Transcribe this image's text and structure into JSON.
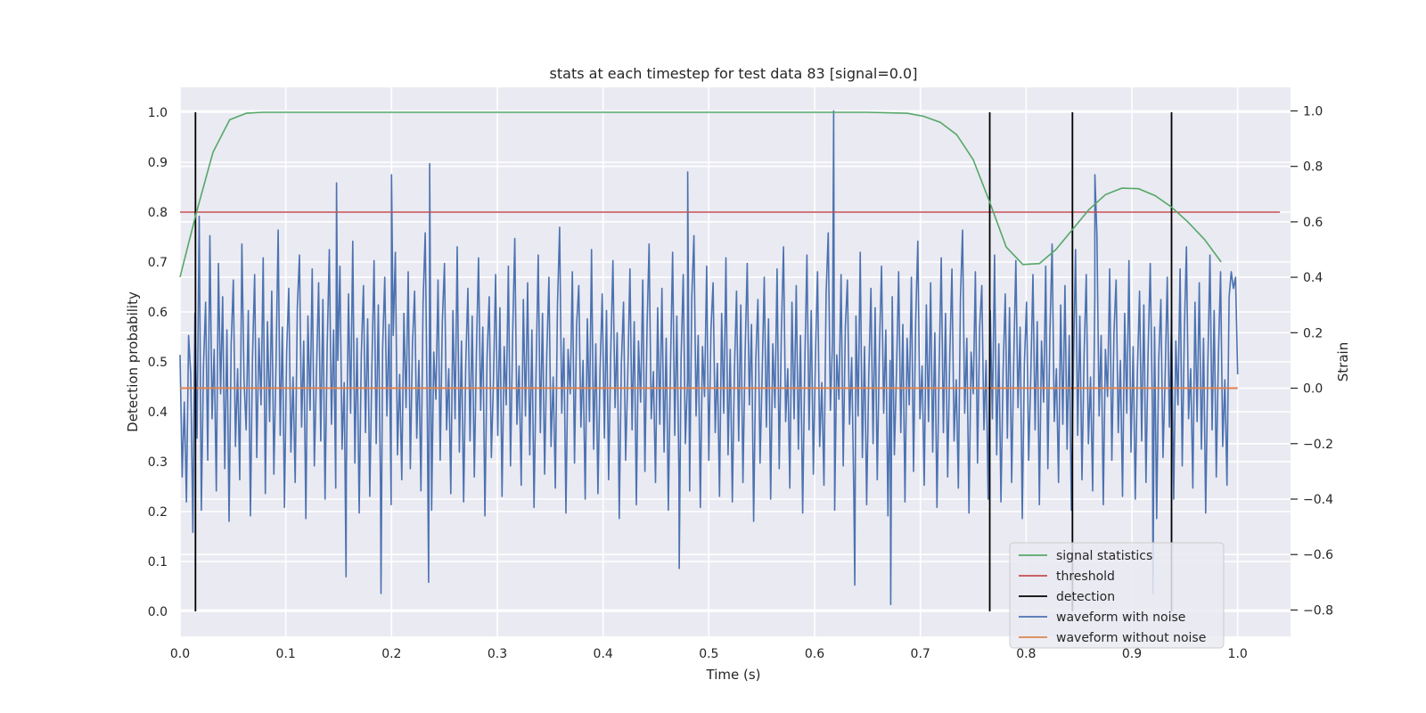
{
  "chart_data": {
    "type": "line",
    "title": "stats at each timestep for test data 83 [signal=0.0]",
    "xlabel": "Time (s)",
    "ylabel_left": "Detection probability",
    "ylabel_right": "Strain",
    "xlim": [
      0.0,
      1.05
    ],
    "ylim_left": [
      -0.05,
      1.05
    ],
    "ylim_right": [
      -0.895,
      1.085
    ],
    "x_ticks": [
      "0.0",
      "0.1",
      "0.2",
      "0.3",
      "0.4",
      "0.5",
      "0.6",
      "0.7",
      "0.8",
      "0.9",
      "1.0"
    ],
    "y_left_ticks": [
      "0.0",
      "0.1",
      "0.2",
      "0.3",
      "0.4",
      "0.5",
      "0.6",
      "0.7",
      "0.8",
      "0.9",
      "1.0"
    ],
    "y_right_ticks": [
      "−0.8",
      "−0.6",
      "−0.4",
      "−0.2",
      "0.0",
      "0.2",
      "0.4",
      "0.6",
      "0.8",
      "1.0"
    ],
    "grid": true,
    "legend_position": "lower-right",
    "series": [
      {
        "name": "signal statistics",
        "axis": "left",
        "color": "#55a868",
        "x": [
          0.0,
          0.0156,
          0.0312,
          0.0469,
          0.0625,
          0.0781,
          0.1,
          0.2,
          0.3,
          0.4,
          0.5,
          0.6,
          0.65,
          0.6875,
          0.7031,
          0.7188,
          0.7344,
          0.75,
          0.7656,
          0.7812,
          0.7969,
          0.8125,
          0.8281,
          0.8438,
          0.8594,
          0.875,
          0.8906,
          0.9062,
          0.9219,
          0.9375,
          0.9531,
          0.9688,
          0.9844
        ],
        "values": [
          0.67,
          0.8,
          0.92,
          0.985,
          0.998,
          1.0,
          1.0,
          1.0,
          1.0,
          1.0,
          1.0,
          1.0,
          1.0,
          0.998,
          0.992,
          0.98,
          0.955,
          0.905,
          0.82,
          0.73,
          0.695,
          0.697,
          0.725,
          0.765,
          0.805,
          0.835,
          0.848,
          0.847,
          0.833,
          0.81,
          0.78,
          0.745,
          0.7
        ]
      },
      {
        "name": "threshold",
        "axis": "left",
        "color": "#c44e52",
        "x": [
          0.0,
          1.04
        ],
        "values": [
          0.8,
          0.8
        ]
      },
      {
        "name": "detection",
        "axis": "left",
        "color": "#000000",
        "x": [
          0.0146,
          0.7656,
          0.8438,
          0.9375
        ],
        "values": [
          1.0,
          1.0,
          1.0,
          1.0
        ]
      },
      {
        "name": "waveform with noise",
        "axis": "right",
        "color": "#4c72b0",
        "x_start": 0.0,
        "x_end": 1.0,
        "values": [
          0.12,
          -0.32,
          -0.05,
          -0.41,
          0.19,
          0.05,
          -0.52,
          0.27,
          -0.18,
          0.62,
          -0.44,
          0.08,
          0.31,
          -0.26,
          0.55,
          -0.11,
          0.14,
          -0.37,
          0.45,
          -0.02,
          0.33,
          -0.29,
          0.21,
          -0.48,
          0.16,
          0.39,
          -0.21,
          0.07,
          -0.33,
          0.52,
          0.03,
          -0.15,
          0.28,
          -0.46,
          0.11,
          0.41,
          -0.25,
          0.18,
          -0.06,
          0.47,
          -0.38,
          0.24,
          -0.12,
          0.35,
          -0.31,
          0.09,
          0.57,
          -0.17,
          0.22,
          -0.43,
          0.13,
          0.36,
          -0.23,
          0.04,
          -0.34,
          0.29,
          0.48,
          -0.14,
          0.17,
          -0.47,
          0.26,
          -0.08,
          0.43,
          -0.28,
          0.06,
          0.38,
          -0.19,
          0.32,
          -0.4,
          0.15,
          0.5,
          -0.13,
          0.21,
          -0.36,
          0.1,
          0.44,
          -0.22,
          0.02,
          -0.3,
          0.34,
          -0.09,
          0.53,
          -0.27,
          0.18,
          -0.45,
          0.12,
          0.37,
          -0.16,
          0.25,
          -0.39,
          0.08,
          0.46,
          -0.2,
          0.3,
          -0.35,
          0.14,
          0.4,
          -0.1,
          0.23,
          -0.42,
          0.19,
          0.49,
          -0.24,
          0.05,
          -0.33,
          0.27,
          -0.07,
          0.42,
          -0.29,
          0.16,
          0.35,
          -0.18,
          0.1,
          -0.37,
          0.31,
          0.56,
          -0.12,
          0.2,
          -0.44,
          0.13,
          -0.04,
          0.39,
          -0.26,
          0.24,
          0.45,
          -0.15,
          0.07,
          -0.38,
          0.28,
          -0.11,
          0.51,
          -0.23,
          0.17,
          -0.41,
          0.09,
          0.36,
          -0.19,
          0.26,
          -0.32,
          0.14,
          0.47,
          -0.08,
          0.22,
          -0.46,
          0.11,
          0.33,
          -0.25,
          0.03,
          0.41,
          -0.17,
          0.29,
          -0.39,
          0.15,
          -0.06,
          0.44,
          -0.28,
          0.19,
          0.54,
          -0.13,
          0.08,
          -0.35,
          0.32,
          -0.1,
          0.38,
          -0.24,
          0.21,
          -0.43,
          0.06,
          0.48,
          -0.16,
          0.27,
          -0.31,
          0.12,
          0.4,
          -0.21,
          0.04,
          -0.36,
          0.3,
          0.58,
          -0.09,
          0.18,
          -0.45,
          0.14,
          -0.02,
          0.42,
          -0.27,
          0.23,
          0.37,
          -0.14,
          0.1,
          -0.4,
          0.25,
          -0.12,
          0.5,
          -0.22,
          0.16,
          -0.38,
          0.07,
          0.34,
          -0.18,
          0.28,
          -0.33,
          0.13,
          0.46,
          -0.07,
          0.2,
          -0.47,
          0.09,
          0.31,
          -0.26,
          0.05,
          0.43,
          -0.15,
          0.24,
          -0.42,
          0.17,
          -0.05,
          0.39,
          -0.3,
          0.22,
          0.52,
          -0.11,
          0.06,
          -0.34,
          0.29,
          -0.13,
          0.36,
          -0.23,
          0.18,
          -0.44,
          0.08,
          0.49,
          -0.17,
          0.26,
          -0.32,
          0.11,
          0.41,
          -0.2,
          0.03,
          -0.37,
          0.33,
          0.55,
          -0.1,
          0.19,
          -0.43,
          0.15,
          -0.03,
          0.44,
          -0.26,
          0.21,
          0.38,
          -0.16,
          0.09,
          -0.39,
          0.27,
          -0.09,
          0.47,
          -0.24,
          0.14,
          -0.41,
          0.06,
          0.35,
          -0.19,
          0.3,
          -0.34,
          0.12,
          0.45,
          -0.06,
          0.23,
          -0.48,
          0.1,
          0.32,
          -0.27,
          0.04,
          0.4,
          -0.14,
          0.25,
          -0.4,
          0.16,
          -0.07,
          0.43,
          -0.29,
          0.2,
          0.51,
          -0.12,
          0.07,
          -0.36,
          0.31,
          -0.11,
          0.37,
          -0.22,
          0.19,
          -0.45,
          0.09,
          0.48,
          -0.15,
          0.28,
          -0.31,
          0.13,
          0.42,
          -0.21,
          0.02,
          -0.35,
          0.34,
          0.56,
          -0.08,
          0.17,
          -0.44,
          0.12,
          -0.04,
          0.41,
          -0.28,
          0.22,
          0.39,
          -0.13,
          0.11,
          -0.38,
          0.26,
          -0.1,
          0.49,
          -0.25,
          0.15,
          -0.42,
          0.05,
          0.36,
          -0.2,
          0.29,
          -0.33,
          0.14,
          0.44,
          -0.09,
          0.21,
          -0.46,
          0.1,
          0.33,
          -0.24,
          0.06,
          0.42,
          -0.16,
          0.23,
          -0.41,
          0.18,
          -0.06,
          0.4,
          -0.3,
          0.24,
          0.53,
          -0.11,
          0.08,
          -0.35,
          0.3,
          -0.12,
          0.38,
          -0.23,
          0.2,
          -0.43,
          0.07,
          0.47,
          -0.16,
          0.27,
          -0.32,
          0.12,
          0.43,
          -0.19,
          0.03,
          -0.36,
          0.32,
          0.57,
          -0.09,
          0.18,
          -0.45,
          0.13,
          -0.02,
          0.42,
          -0.27,
          0.22,
          0.37,
          -0.15,
          0.1,
          -0.4,
          0.28,
          -0.11,
          0.48,
          -0.24,
          0.16,
          -0.41,
          0.06,
          0.34,
          -0.18,
          0.29,
          -0.34,
          0.11,
          0.46,
          -0.07,
          0.22,
          -0.47,
          0.09,
          0.31,
          -0.26,
          0.05,
          0.41,
          -0.15,
          0.24,
          -0.42,
          0.17,
          -0.05,
          0.44,
          -0.29,
          0.21,
          0.52,
          -0.12,
          0.07,
          -0.34,
          0.3,
          -0.13,
          0.37,
          -0.22,
          0.19,
          -0.44,
          0.08,
          0.5,
          -0.17,
          0.26,
          -0.33,
          0.12,
          0.41,
          -0.2,
          0.04,
          -0.37,
          0.33,
          0.55,
          -0.1,
          0.19,
          -0.42,
          0.14,
          -0.03,
          0.43,
          -0.26,
          0.2,
          0.39,
          -0.16,
          0.1,
          -0.39,
          0.27,
          -0.09,
          0.46,
          -0.23,
          0.15,
          -0.4,
          0.06,
          0.35,
          -0.19,
          0.3,
          -0.34,
          0.13,
          0.45,
          -0.07,
          0.22,
          -0.47,
          0.1,
          0.32,
          -0.25,
          0.04,
          0.4,
          -0.14,
          0.25,
          -0.4,
          0.17,
          -0.06,
          0.43,
          -0.28,
          0.21,
          0.51,
          -0.11,
          0.07,
          -0.36,
          0.31,
          -0.12,
          0.38,
          -0.22,
          0.18,
          -0.45,
          0.08,
          0.48,
          -0.15,
          0.28,
          -0.32,
          0.12,
          0.42,
          -0.21,
          0.03,
          -0.35,
          0.33,
          0.42,
          0.36,
          0.4,
          0.05
        ],
        "notes_min_max": "waveform spans roughly −0.85 to 1.0 strain"
      },
      {
        "name": "waveform without noise",
        "axis": "right",
        "color": "#dd8452",
        "x": [
          0.0,
          1.0
        ],
        "values": [
          0.0,
          0.0
        ]
      }
    ],
    "spikes": [
      {
        "x": 0.618,
        "value": 1.0
      },
      {
        "x": 0.672,
        "value": -0.78
      },
      {
        "x": 0.19,
        "value": -0.74
      },
      {
        "x": 0.235,
        "value": -0.7
      },
      {
        "x": 0.236,
        "value": 0.81
      },
      {
        "x": 0.2,
        "value": 0.77
      },
      {
        "x": 0.48,
        "value": 0.78
      },
      {
        "x": 0.865,
        "value": 0.77
      },
      {
        "x": 0.148,
        "value": 0.74
      },
      {
        "x": 0.157,
        "value": -0.68
      },
      {
        "x": 0.472,
        "value": -0.65
      },
      {
        "x": 0.638,
        "value": -0.71
      },
      {
        "x": 0.92,
        "value": -0.74
      }
    ]
  }
}
